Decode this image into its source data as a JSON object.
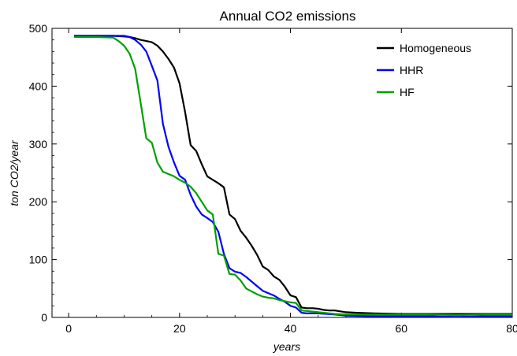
{
  "chart_data": {
    "type": "line",
    "title": "Annual CO2 emissions",
    "xlabel": "years",
    "ylabel": "ton CO2/year",
    "xlim": [
      -3,
      80
    ],
    "ylim": [
      0,
      500
    ],
    "xticks": [
      0,
      20,
      40,
      60,
      80
    ],
    "yticks": [
      0,
      100,
      200,
      300,
      400,
      500
    ],
    "grid": false,
    "legend_position": "top-right",
    "series": [
      {
        "name": "Homogeneous",
        "color": "#000000",
        "x": [
          1,
          5,
          8,
          10,
          11,
          12,
          13,
          14,
          15,
          16,
          17,
          18,
          19,
          20,
          21,
          22,
          23,
          24,
          25,
          26,
          27,
          28,
          29,
          30,
          31,
          32,
          33,
          34,
          35,
          36,
          37,
          38,
          39,
          40,
          41,
          42,
          43,
          44,
          45,
          46,
          47,
          48,
          50,
          52,
          55,
          60,
          65,
          70,
          75,
          80
        ],
        "y": [
          487,
          487,
          487,
          486,
          485,
          483,
          480,
          478,
          476,
          470,
          460,
          447,
          432,
          405,
          355,
          298,
          288,
          265,
          244,
          238,
          232,
          225,
          178,
          170,
          150,
          138,
          124,
          108,
          88,
          82,
          71,
          65,
          53,
          38,
          35,
          17,
          16,
          16,
          15,
          13,
          12,
          12,
          9,
          8,
          7,
          6,
          6,
          6,
          6,
          6
        ]
      },
      {
        "name": "HHR",
        "color": "#0000ff",
        "x": [
          1,
          5,
          8,
          10,
          11,
          12,
          13,
          14,
          15,
          16,
          17,
          18,
          19,
          20,
          21,
          22,
          23,
          24,
          25,
          26,
          27,
          28,
          29,
          30,
          31,
          32,
          33,
          34,
          35,
          36,
          37,
          38,
          39,
          40,
          41,
          42,
          43,
          44,
          45,
          48,
          50,
          55,
          60,
          65,
          70,
          75,
          80
        ],
        "y": [
          487,
          487,
          487,
          487,
          485,
          480,
          472,
          460,
          435,
          410,
          335,
          295,
          268,
          245,
          238,
          212,
          192,
          178,
          172,
          165,
          148,
          110,
          85,
          79,
          77,
          70,
          62,
          54,
          46,
          42,
          38,
          32,
          27,
          20,
          17,
          8,
          7,
          7,
          7,
          5,
          3,
          2,
          2,
          2,
          1,
          2,
          2
        ]
      },
      {
        "name": "HF",
        "color": "#00a000",
        "x": [
          1,
          5,
          8,
          9,
          10,
          11,
          12,
          13,
          14,
          15,
          16,
          17,
          18,
          19,
          20,
          21,
          22,
          23,
          24,
          25,
          26,
          27,
          28,
          29,
          30,
          31,
          32,
          33,
          34,
          35,
          36,
          37,
          38,
          39,
          40,
          41,
          42,
          43,
          45,
          48,
          50,
          55,
          60,
          65,
          70,
          75,
          80
        ],
        "y": [
          485,
          485,
          484,
          478,
          470,
          456,
          430,
          370,
          310,
          302,
          268,
          252,
          248,
          244,
          238,
          233,
          226,
          215,
          200,
          185,
          178,
          110,
          107,
          75,
          74,
          64,
          50,
          45,
          40,
          36,
          34,
          33,
          30,
          28,
          26,
          25,
          12,
          11,
          9,
          6,
          5,
          5,
          5,
          5,
          4,
          5,
          5
        ]
      }
    ]
  }
}
